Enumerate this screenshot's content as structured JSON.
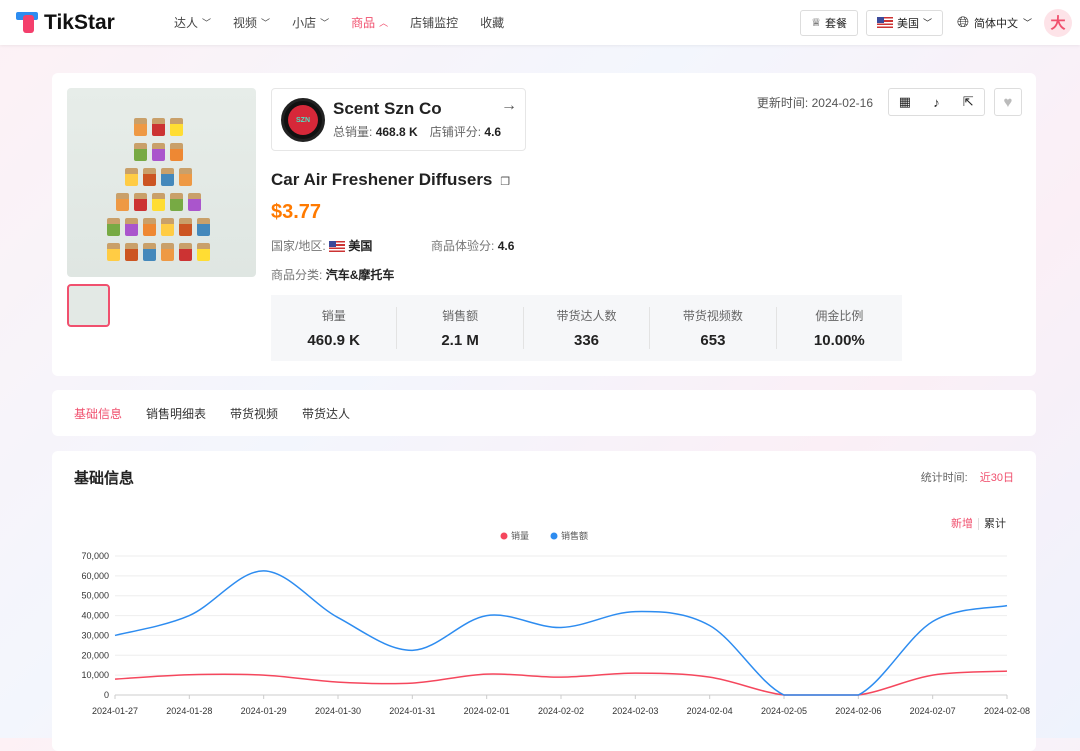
{
  "header": {
    "brand": "TikStar",
    "nav": [
      {
        "label": "达人",
        "chevron": "down"
      },
      {
        "label": "视频",
        "chevron": "down"
      },
      {
        "label": "小店",
        "chevron": "down"
      },
      {
        "label": "商品",
        "chevron": "up",
        "active": true
      },
      {
        "label": "店铺监控"
      },
      {
        "label": "收藏"
      }
    ],
    "plan_label": "套餐",
    "region_label": "美国",
    "language_label": "简体中文",
    "avatar_text": "大"
  },
  "shop": {
    "name": "Scent Szn Co",
    "logo_text": "SCENT SZN",
    "total_sales_label": "总销量:",
    "total_sales": "468.8 K",
    "rating_label": "店铺评分:",
    "rating": "4.6"
  },
  "product": {
    "title": "Car Air Freshener Diffusers",
    "price": "$3.77",
    "country_label": "国家/地区:",
    "country": "美国",
    "score_label": "商品体验分:",
    "score": "4.6",
    "category_label": "商品分类:",
    "category": "汽车&摩托车",
    "update_label": "更新时间:",
    "update_date": "2024-02-16"
  },
  "stats": [
    {
      "label": "销量",
      "value": "460.9 K"
    },
    {
      "label": "销售额",
      "value": "2.1 M"
    },
    {
      "label": "带货达人数",
      "value": "336"
    },
    {
      "label": "带货视频数",
      "value": "653"
    },
    {
      "label": "佣金比例",
      "value": "10.00%"
    }
  ],
  "tabs": [
    {
      "label": "基础信息",
      "active": true
    },
    {
      "label": "销售明细表"
    },
    {
      "label": "带货视频"
    },
    {
      "label": "带货达人"
    }
  ],
  "section": {
    "title": "基础信息",
    "stat_time_label": "统计时间:",
    "stat_time_value": "近30日",
    "toggle_new": "新增",
    "toggle_total": "累计"
  },
  "colors": {
    "accent": "#f0506e",
    "price": "#ff7a00",
    "sales": "#f5475d",
    "revenue": "#2d8cf0"
  },
  "chart_data": {
    "type": "line",
    "categories": [
      "2024-01-27",
      "2024-01-28",
      "2024-01-29",
      "2024-01-30",
      "2024-01-31",
      "2024-02-01",
      "2024-02-02",
      "2024-02-03",
      "2024-02-04",
      "2024-02-05",
      "2024-02-06",
      "2024-02-07",
      "2024-02-08"
    ],
    "series": [
      {
        "name": "销量",
        "color": "#f5475d",
        "values": [
          8000,
          10200,
          10000,
          6500,
          6000,
          10500,
          9000,
          11000,
          9000,
          0,
          0,
          10000,
          12000
        ]
      },
      {
        "name": "销售额",
        "color": "#2d8cf0",
        "values": [
          30000,
          40000,
          62500,
          39000,
          22500,
          40000,
          34000,
          42000,
          35000,
          0,
          0,
          37000,
          45000
        ]
      }
    ],
    "yticks": [
      0,
      10000,
      20000,
      30000,
      40000,
      50000,
      60000,
      70000
    ],
    "ylim": [
      0,
      70000
    ],
    "grid": true,
    "legend": "top-center",
    "smooth": true
  }
}
